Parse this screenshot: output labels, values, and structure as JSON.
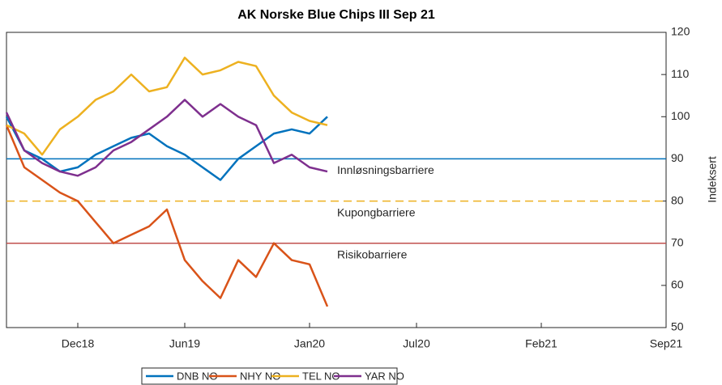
{
  "chart_data": {
    "type": "line",
    "title": "AK Norske Blue Chips III Sep 21",
    "y_label": "Indeksert",
    "x": [
      "2018-08",
      "2018-09",
      "2018-10",
      "2018-11",
      "2018-12",
      "2019-01",
      "2019-02",
      "2019-03",
      "2019-04",
      "2019-05",
      "2019-06",
      "2019-07",
      "2019-08",
      "2019-09",
      "2019-10",
      "2019-11",
      "2019-12",
      "2020-01",
      "2020-02"
    ],
    "series": [
      {
        "name": "DNB NO",
        "color": "#0072bd",
        "values": [
          100,
          92,
          90,
          87,
          88,
          91,
          93,
          95,
          96,
          93,
          91,
          88,
          85,
          90,
          93,
          96,
          97,
          96,
          100
        ]
      },
      {
        "name": "NHY NO",
        "color": "#d95319",
        "values": [
          98,
          88,
          85,
          82,
          80,
          75,
          70,
          72,
          74,
          78,
          66,
          61,
          57,
          66,
          62,
          70,
          66,
          65,
          55
        ]
      },
      {
        "name": "TEL NO",
        "color": "#edb120",
        "values": [
          98,
          96,
          91,
          97,
          100,
          104,
          106,
          110,
          106,
          107,
          114,
          110,
          111,
          113,
          112,
          105,
          101,
          99,
          98
        ]
      },
      {
        "name": "YAR NO",
        "color": "#7e2f8e",
        "values": [
          101,
          92,
          89,
          87,
          86,
          88,
          92,
          94,
          97,
          100,
          104,
          100,
          103,
          100,
          98,
          89,
          91,
          88,
          87
        ]
      }
    ],
    "reference_lines": [
      {
        "label": "Innløsningsbarriere",
        "value": 90,
        "color": "#0072bd",
        "dashed": false
      },
      {
        "label": "Kupongbarriere",
        "value": 80,
        "color": "#edb120",
        "dashed": true
      },
      {
        "label": "Risikobarriere",
        "value": 70,
        "color": "#c0504d",
        "dashed": false
      }
    ],
    "xlim": [
      "2018-08",
      "2021-09"
    ],
    "xticks": [
      {
        "value": "2018-12",
        "label": "Dec18"
      },
      {
        "value": "2019-06",
        "label": "Jun19"
      },
      {
        "value": "2020-01",
        "label": "Jan20"
      },
      {
        "value": "2020-07",
        "label": "Jul20"
      },
      {
        "value": "2021-02",
        "label": "Feb21"
      },
      {
        "value": "2021-09",
        "label": "Sep21"
      }
    ],
    "ylim": [
      50,
      120
    ],
    "yticks": [
      50,
      60,
      70,
      80,
      90,
      100,
      110,
      120
    ],
    "y_axis_side": "right"
  }
}
